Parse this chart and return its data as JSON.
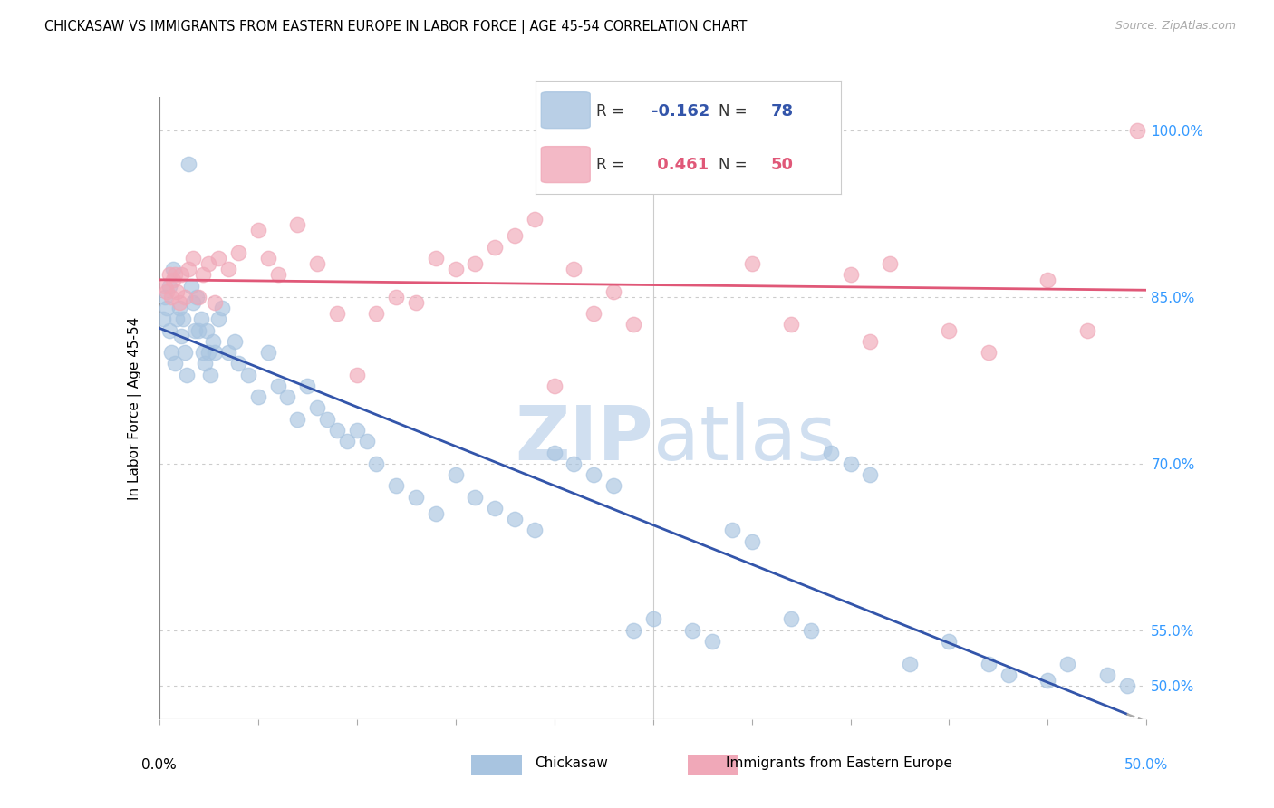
{
  "title": "CHICKASAW VS IMMIGRANTS FROM EASTERN EUROPE IN LABOR FORCE | AGE 45-54 CORRELATION CHART",
  "source": "Source: ZipAtlas.com",
  "ylabel": "In Labor Force | Age 45-54",
  "y_ticks": [
    50.0,
    55.0,
    70.0,
    85.0,
    100.0
  ],
  "y_tick_labels": [
    "50.0%",
    "55.0%",
    "70.0%",
    "85.0%",
    "100.0%"
  ],
  "x_range": [
    0.0,
    50.0
  ],
  "y_range": [
    47.0,
    103.0
  ],
  "blue_color": "#a8c4e0",
  "pink_color": "#f0a8b8",
  "blue_line_color": "#3355aa",
  "pink_line_color": "#e05878",
  "watermark_color": "#d0dff0",
  "chickasaw_R": -0.162,
  "chickasaw_N": 78,
  "eastern_europe_R": 0.461,
  "eastern_europe_N": 50,
  "chickasaw_x": [
    0.2,
    0.3,
    0.4,
    0.5,
    0.5,
    0.6,
    0.7,
    0.8,
    0.9,
    1.0,
    1.1,
    1.2,
    1.3,
    1.4,
    1.5,
    1.6,
    1.7,
    1.8,
    1.9,
    2.0,
    2.1,
    2.2,
    2.3,
    2.4,
    2.5,
    2.6,
    2.7,
    2.8,
    3.0,
    3.2,
    3.5,
    3.8,
    4.0,
    4.5,
    5.0,
    5.5,
    6.0,
    6.5,
    7.0,
    7.5,
    8.0,
    8.5,
    9.0,
    9.5,
    10.0,
    10.5,
    11.0,
    12.0,
    13.0,
    14.0,
    15.0,
    16.0,
    17.0,
    18.0,
    19.0,
    20.0,
    21.0,
    22.0,
    23.0,
    24.0,
    25.0,
    27.0,
    28.0,
    29.0,
    30.0,
    32.0,
    33.0,
    34.0,
    35.0,
    36.0,
    38.0,
    40.0,
    42.0,
    43.0,
    45.0,
    46.0,
    48.0,
    49.0
  ],
  "chickasaw_y": [
    83.0,
    85.0,
    84.0,
    82.0,
    86.0,
    80.0,
    87.5,
    79.0,
    83.0,
    84.0,
    81.5,
    83.0,
    80.0,
    78.0,
    97.0,
    86.0,
    84.5,
    82.0,
    85.0,
    82.0,
    83.0,
    80.0,
    79.0,
    82.0,
    80.0,
    78.0,
    81.0,
    80.0,
    83.0,
    84.0,
    80.0,
    81.0,
    79.0,
    78.0,
    76.0,
    80.0,
    77.0,
    76.0,
    74.0,
    77.0,
    75.0,
    74.0,
    73.0,
    72.0,
    73.0,
    72.0,
    70.0,
    68.0,
    67.0,
    65.5,
    69.0,
    67.0,
    66.0,
    65.0,
    64.0,
    71.0,
    70.0,
    69.0,
    68.0,
    55.0,
    56.0,
    55.0,
    54.0,
    64.0,
    63.0,
    56.0,
    55.0,
    71.0,
    70.0,
    69.0,
    52.0,
    54.0,
    52.0,
    51.0,
    50.5,
    52.0,
    51.0,
    50.0
  ],
  "eastern_europe_x": [
    0.3,
    0.4,
    0.5,
    0.6,
    0.7,
    0.8,
    0.9,
    1.0,
    1.1,
    1.3,
    1.5,
    1.7,
    2.0,
    2.2,
    2.5,
    2.8,
    3.0,
    3.5,
    4.0,
    5.0,
    5.5,
    6.0,
    7.0,
    8.0,
    9.0,
    10.0,
    11.0,
    12.0,
    13.0,
    14.0,
    15.0,
    16.0,
    17.0,
    18.0,
    19.0,
    20.0,
    21.0,
    22.0,
    23.0,
    24.0,
    30.0,
    32.0,
    35.0,
    36.0,
    37.0,
    40.0,
    42.0,
    45.0,
    47.0,
    49.5
  ],
  "eastern_europe_y": [
    86.0,
    85.5,
    87.0,
    85.0,
    86.5,
    87.0,
    85.5,
    84.5,
    87.0,
    85.0,
    87.5,
    88.5,
    85.0,
    87.0,
    88.0,
    84.5,
    88.5,
    87.5,
    89.0,
    91.0,
    88.5,
    87.0,
    91.5,
    88.0,
    83.5,
    78.0,
    83.5,
    85.0,
    84.5,
    88.5,
    87.5,
    88.0,
    89.5,
    90.5,
    92.0,
    77.0,
    87.5,
    83.5,
    85.5,
    82.5,
    88.0,
    82.5,
    87.0,
    81.0,
    88.0,
    82.0,
    80.0,
    86.5,
    82.0,
    100.0
  ]
}
